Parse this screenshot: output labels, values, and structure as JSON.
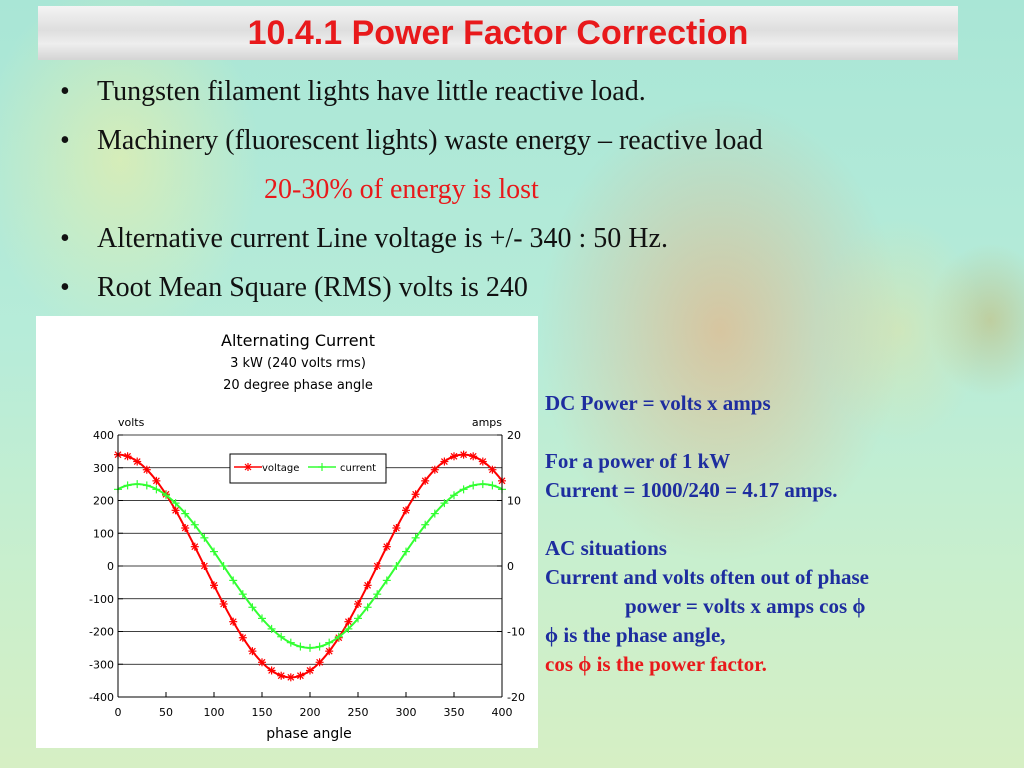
{
  "title": "10.4.1 Power Factor Correction",
  "bullets": [
    {
      "text": "Tungsten filament lights have little reactive load."
    },
    {
      "text": "Machinery (fluorescent lights)  waste energy – reactive load"
    },
    {
      "text": "Alternative current  Line voltage is +/- 340  :  50 Hz."
    },
    {
      "text": "Root Mean Square (RMS) volts is 240"
    }
  ],
  "bullet_symbol": "•",
  "energy_lost": "20-30% of energy is lost",
  "notes": {
    "dc_power": "DC Power  = volts x amps",
    "for_1kw": "For a power of 1 kW",
    "current_calc": "Current = 1000/240  = 4.17 amps.",
    "ac_situations": "AC situations",
    "out_of_phase": "Current and volts often out of phase",
    "power_formula": "power = volts x amps  cos ϕ",
    "phase_angle": "ϕ  is the phase angle,",
    "power_factor": "cos ϕ is the power factor."
  },
  "colors": {
    "title": "#e8191b",
    "notes_blue": "#1e2d9f",
    "voltage": "#ff0000",
    "current": "#33ff33"
  },
  "chart_data": {
    "type": "line",
    "title": "Alternating Current",
    "subtitle_lines": [
      "3 kW (240 volts rms)",
      "20 degree phase angle"
    ],
    "xlabel": "phase angle",
    "ylabel_left": "volts",
    "ylabel_right": "amps",
    "xlim": [
      0,
      400
    ],
    "ylim": [
      -400,
      400
    ],
    "ylim_right": [
      -20,
      20
    ],
    "xticks": [
      0,
      50,
      100,
      150,
      200,
      250,
      300,
      350,
      400
    ],
    "yticks": [
      400,
      300,
      200,
      100,
      0,
      -100,
      -200,
      -300,
      -400
    ],
    "yticks_right": [
      20,
      10,
      0,
      -10,
      -20
    ],
    "grid": "horizontal",
    "legend_position": "top-center",
    "series": [
      {
        "name": "voltage",
        "axis": "left",
        "amplitude": 340,
        "phase_shift_deg": 0,
        "marker": "asterisk",
        "x": [
          0,
          10,
          20,
          30,
          40,
          50,
          60,
          70,
          80,
          90,
          100,
          110,
          120,
          130,
          140,
          150,
          160,
          170,
          180,
          190,
          200,
          210,
          220,
          230,
          240,
          250,
          260,
          270,
          280,
          290,
          300,
          310,
          320,
          330,
          340,
          350,
          360,
          370,
          380,
          390,
          400
        ],
        "values": [
          340,
          335,
          319,
          294,
          260,
          219,
          170,
          116,
          59,
          0,
          -59,
          -116,
          -170,
          -219,
          -260,
          -294,
          -319,
          -335,
          -340,
          -335,
          -319,
          -294,
          -260,
          -219,
          -170,
          -116,
          -59,
          0,
          59,
          116,
          170,
          219,
          260,
          294,
          319,
          335,
          340,
          335,
          319,
          294,
          260
        ]
      },
      {
        "name": "current",
        "axis": "right",
        "amplitude": 12.5,
        "phase_shift_deg": 20,
        "marker": "plus",
        "x": [
          0,
          10,
          20,
          30,
          40,
          50,
          60,
          70,
          80,
          90,
          100,
          110,
          120,
          130,
          140,
          150,
          160,
          170,
          180,
          190,
          200,
          210,
          220,
          230,
          240,
          250,
          260,
          270,
          280,
          290,
          300,
          310,
          320,
          330,
          340,
          350,
          360,
          370,
          380,
          390,
          400
        ],
        "values": [
          11.7,
          12.3,
          12.5,
          12.3,
          11.7,
          10.8,
          9.6,
          8.0,
          6.3,
          4.3,
          2.2,
          0,
          -2.2,
          -4.3,
          -6.3,
          -8.0,
          -9.6,
          -10.8,
          -11.7,
          -12.3,
          -12.5,
          -12.3,
          -11.7,
          -10.8,
          -9.6,
          -8.0,
          -6.3,
          -4.3,
          -2.2,
          0,
          2.2,
          4.3,
          6.3,
          8.0,
          9.6,
          10.8,
          11.7,
          12.3,
          12.5,
          12.3,
          11.7
        ]
      }
    ]
  }
}
